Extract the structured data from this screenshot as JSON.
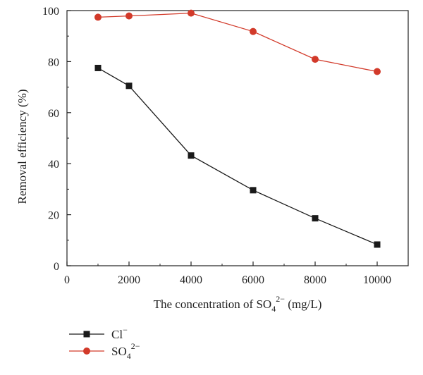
{
  "chart_data": {
    "type": "line",
    "xlabel_main": "The concentration of SO",
    "xlabel_sub": "4",
    "xlabel_sup": "2−",
    "xlabel_tail": " (mg/L)",
    "ylabel": "Removal efficiency (%)",
    "xlim": [
      0,
      11000
    ],
    "ylim": [
      0,
      100
    ],
    "xticks": [
      0,
      2000,
      4000,
      6000,
      8000,
      10000
    ],
    "yticks": [
      0,
      20,
      40,
      60,
      80,
      100
    ],
    "grid": false,
    "legend_position": "bottom-left",
    "series": [
      {
        "name_main": "Cl",
        "name_sup": "−",
        "name_sub": "",
        "marker": "square",
        "color": "#1a1a1a",
        "x": [
          1000,
          2000,
          4000,
          6000,
          8000,
          10000
        ],
        "y": [
          77.5,
          70.5,
          43.2,
          29.6,
          18.6,
          8.3
        ]
      },
      {
        "name_main": "SO",
        "name_sub": "4",
        "name_sup": "2−",
        "marker": "circle",
        "color": "#d23a2a",
        "x": [
          1000,
          2000,
          4000,
          6000,
          8000,
          10000
        ],
        "y": [
          97.4,
          97.9,
          99.0,
          91.8,
          80.9,
          76.1
        ]
      }
    ]
  }
}
